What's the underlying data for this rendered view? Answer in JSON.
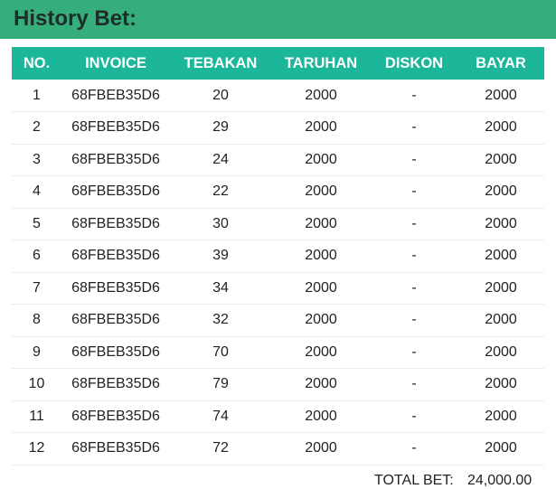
{
  "header": {
    "title": "History Bet:"
  },
  "table": {
    "columns": [
      "NO.",
      "INVOICE",
      "TEBAKAN",
      "TARUHAN",
      "DISKON",
      "BAYAR"
    ],
    "rows": [
      [
        "1",
        "68FBEB35D6",
        "20",
        "2000",
        "-",
        "2000"
      ],
      [
        "2",
        "68FBEB35D6",
        "29",
        "2000",
        "-",
        "2000"
      ],
      [
        "3",
        "68FBEB35D6",
        "24",
        "2000",
        "-",
        "2000"
      ],
      [
        "4",
        "68FBEB35D6",
        "22",
        "2000",
        "-",
        "2000"
      ],
      [
        "5",
        "68FBEB35D6",
        "30",
        "2000",
        "-",
        "2000"
      ],
      [
        "6",
        "68FBEB35D6",
        "39",
        "2000",
        "-",
        "2000"
      ],
      [
        "7",
        "68FBEB35D6",
        "34",
        "2000",
        "-",
        "2000"
      ],
      [
        "8",
        "68FBEB35D6",
        "32",
        "2000",
        "-",
        "2000"
      ],
      [
        "9",
        "68FBEB35D6",
        "70",
        "2000",
        "-",
        "2000"
      ],
      [
        "10",
        "68FBEB35D6",
        "79",
        "2000",
        "-",
        "2000"
      ],
      [
        "11",
        "68FBEB35D6",
        "74",
        "2000",
        "-",
        "2000"
      ],
      [
        "12",
        "68FBEB35D6",
        "72",
        "2000",
        "-",
        "2000"
      ]
    ]
  },
  "footer": {
    "total_label": "TOTAL BET:",
    "total_value": "24,000.00"
  },
  "colors": {
    "header_bg": "#35ae7c",
    "table_header_bg": "#1cb79a"
  }
}
